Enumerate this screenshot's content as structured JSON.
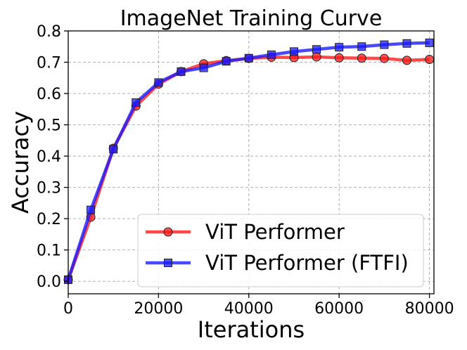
{
  "chart_data": {
    "type": "line",
    "title": "ImageNet Training Curve",
    "xlabel": "Iterations",
    "ylabel": "Accuracy",
    "xlim": [
      0,
      81000
    ],
    "ylim": [
      -0.04,
      0.8
    ],
    "xticks": [
      0,
      20000,
      40000,
      60000,
      80000
    ],
    "xtick_labels": [
      "0",
      "20000",
      "40000",
      "60000",
      "80000"
    ],
    "yticks": [
      0.0,
      0.1,
      0.2,
      0.3,
      0.4,
      0.5,
      0.6,
      0.7,
      0.8
    ],
    "ytick_labels": [
      "0.0",
      "0.1",
      "0.2",
      "0.3",
      "0.4",
      "0.5",
      "0.6",
      "0.7",
      "0.8"
    ],
    "grid": true,
    "legend_position": "lower-right",
    "x": [
      0,
      5000,
      10000,
      15000,
      20000,
      25000,
      30000,
      35000,
      40000,
      45000,
      50000,
      55000,
      60000,
      65000,
      70000,
      75000,
      80000
    ],
    "series": [
      {
        "name": "ViT Performer",
        "color": "#ff1a1a",
        "marker": "circle",
        "values": [
          0.005,
          0.205,
          0.425,
          0.56,
          0.63,
          0.67,
          0.695,
          0.705,
          0.712,
          0.716,
          0.715,
          0.717,
          0.714,
          0.713,
          0.712,
          0.706,
          0.709
        ]
      },
      {
        "name": "ViT Performer (FTFI)",
        "color": "#1a1aff",
        "marker": "square",
        "values": [
          0.005,
          0.228,
          0.422,
          0.571,
          0.635,
          0.67,
          0.682,
          0.703,
          0.713,
          0.724,
          0.734,
          0.741,
          0.748,
          0.75,
          0.756,
          0.76,
          0.762
        ]
      }
    ]
  }
}
